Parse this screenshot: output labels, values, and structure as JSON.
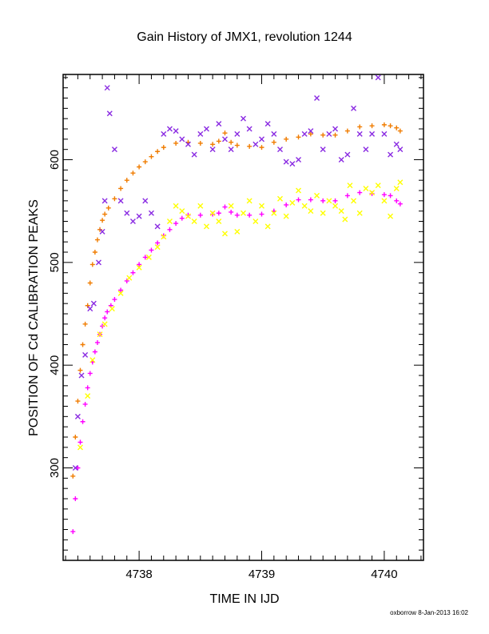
{
  "chart_data": {
    "type": "scatter",
    "title": "Gain History of JMX1, revolution 1244",
    "xlabel": "TIME IN IJD",
    "ylabel": "POSITION OF Cd CALIBRATION PEAKS",
    "xlim": [
      4737.38,
      4740.32
    ],
    "ylim": [
      210,
      683
    ],
    "xticks": [
      "4738",
      "4739",
      "4740"
    ],
    "yticks": [
      "300",
      "400",
      "500",
      "600"
    ],
    "grid": false,
    "legend": "none",
    "credit": "oxborrow  8-Jan-2013 16:02",
    "series": [
      {
        "marker": "plus",
        "color": "#f07c00",
        "x": [
          4737.46,
          4737.48,
          4737.5,
          4737.52,
          4737.54,
          4737.56,
          4737.58,
          4737.6,
          4737.62,
          4737.64,
          4737.66,
          4737.68,
          4737.7,
          4737.72,
          4737.75,
          4737.8,
          4737.85,
          4737.9,
          4737.95,
          4738.0,
          4738.05,
          4738.1,
          4738.15,
          4738.2,
          4738.3,
          4738.4,
          4738.5,
          4738.6,
          4738.65,
          4738.7,
          4738.75,
          4738.8,
          4738.9,
          4739.0,
          4739.1,
          4739.2,
          4739.3,
          4739.4,
          4739.5,
          4739.6,
          4739.7,
          4739.8,
          4739.9,
          4740.0,
          4740.05,
          4740.1,
          4740.13
        ],
        "y": [
          292,
          330,
          365,
          395,
          420,
          440,
          458,
          480,
          498,
          510,
          522,
          532,
          541,
          547,
          553,
          562,
          572,
          580,
          587,
          593,
          598,
          603,
          608,
          612,
          616,
          617,
          616,
          615,
          618,
          626,
          617,
          614,
          613,
          612,
          617,
          620,
          622,
          625,
          624,
          624,
          628,
          632,
          633,
          634,
          633,
          631,
          628
        ]
      },
      {
        "marker": "plus",
        "color": "#ff00ff",
        "x": [
          4737.46,
          4737.48,
          4737.5,
          4737.52,
          4737.54,
          4737.56,
          4737.58,
          4737.6,
          4737.62,
          4737.64,
          4737.66,
          4737.68,
          4737.7,
          4737.72,
          4737.74,
          4737.77,
          4737.8,
          4737.85,
          4737.9,
          4737.95,
          4738.0,
          4738.05,
          4738.1,
          4738.15,
          4738.2,
          4738.25,
          4738.3,
          4738.35,
          4738.4,
          4738.5,
          4738.6,
          4738.65,
          4738.7,
          4738.75,
          4738.8,
          4738.9,
          4739.0,
          4739.1,
          4739.2,
          4739.3,
          4739.4,
          4739.5,
          4739.6,
          4739.7,
          4739.8,
          4739.9,
          4740.0,
          4740.05,
          4740.1,
          4740.13
        ],
        "y": [
          238,
          270,
          300,
          325,
          345,
          362,
          378,
          392,
          403,
          413,
          422,
          430,
          438,
          446,
          452,
          458,
          464,
          473,
          482,
          490,
          498,
          505,
          512,
          519,
          526,
          532,
          538,
          543,
          546,
          546,
          547,
          548,
          554,
          549,
          546,
          546,
          547,
          550,
          556,
          561,
          561,
          560,
          560,
          565,
          568,
          567,
          566,
          565,
          560,
          557
        ]
      },
      {
        "marker": "cross",
        "color": "#ffff00",
        "x": [
          4737.52,
          4737.58,
          4737.62,
          4737.68,
          4737.72,
          4737.78,
          4737.85,
          4737.92,
          4738.0,
          4738.08,
          4738.15,
          4738.2,
          4738.25,
          4738.3,
          4738.35,
          4738.4,
          4738.45,
          4738.5,
          4738.55,
          4738.6,
          4738.65,
          4738.7,
          4738.75,
          4738.8,
          4738.85,
          4738.9,
          4738.95,
          4739.0,
          4739.05,
          4739.1,
          4739.15,
          4739.2,
          4739.25,
          4739.3,
          4739.35,
          4739.4,
          4739.45,
          4739.5,
          4739.55,
          4739.6,
          4739.65,
          4739.68,
          4739.72,
          4739.75,
          4739.8,
          4739.85,
          4739.9,
          4739.95,
          4740.0,
          4740.05,
          4740.1,
          4740.13
        ],
        "y": [
          320,
          370,
          405,
          430,
          440,
          455,
          470,
          485,
          495,
          505,
          515,
          525,
          540,
          555,
          550,
          545,
          540,
          555,
          535,
          548,
          540,
          528,
          555,
          530,
          548,
          560,
          540,
          555,
          535,
          548,
          562,
          545,
          558,
          570,
          555,
          550,
          565,
          548,
          560,
          555,
          550,
          542,
          575,
          560,
          548,
          572,
          568,
          575,
          560,
          545,
          572,
          578
        ]
      },
      {
        "marker": "cross",
        "color": "#8a2be2",
        "x": [
          4737.48,
          4737.5,
          4737.53,
          4737.56,
          4737.6,
          4737.63,
          4737.67,
          4737.7,
          4737.72,
          4737.74,
          4737.76,
          4737.8,
          4737.85,
          4737.9,
          4737.95,
          4738.0,
          4738.05,
          4738.1,
          4738.15,
          4738.2,
          4738.25,
          4738.3,
          4738.35,
          4738.4,
          4738.45,
          4738.5,
          4738.55,
          4738.6,
          4738.65,
          4738.7,
          4738.75,
          4738.8,
          4738.85,
          4738.9,
          4738.95,
          4739.0,
          4739.05,
          4739.1,
          4739.15,
          4739.2,
          4739.25,
          4739.3,
          4739.35,
          4739.4,
          4739.45,
          4739.5,
          4739.55,
          4739.6,
          4739.65,
          4739.7,
          4739.75,
          4739.8,
          4739.85,
          4739.9,
          4739.95,
          4740.0,
          4740.05,
          4740.1,
          4740.13
        ],
        "y": [
          300,
          350,
          390,
          410,
          455,
          460,
          500,
          530,
          560,
          670,
          645,
          610,
          560,
          548,
          540,
          545,
          560,
          548,
          535,
          625,
          630,
          628,
          620,
          615,
          605,
          625,
          630,
          610,
          635,
          620,
          610,
          625,
          640,
          630,
          615,
          620,
          635,
          625,
          610,
          598,
          596,
          600,
          625,
          628,
          660,
          610,
          625,
          630,
          600,
          605,
          650,
          625,
          610,
          625,
          680,
          625,
          605,
          615,
          610
        ]
      }
    ]
  }
}
